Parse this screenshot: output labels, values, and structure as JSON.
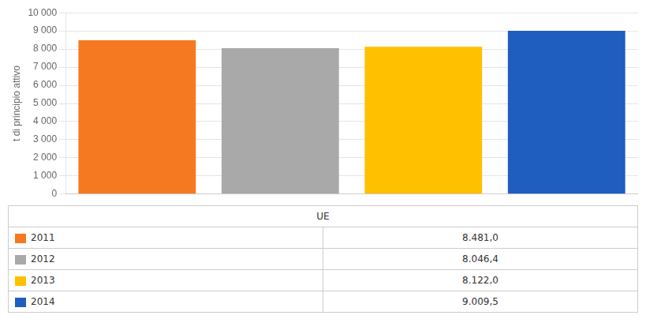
{
  "chart_data": {
    "type": "bar",
    "categories": [
      "UE"
    ],
    "series": [
      {
        "name": "2011",
        "color": "#F47920",
        "values": [
          8481.0
        ],
        "value_labels": [
          "8.481,0"
        ]
      },
      {
        "name": "2012",
        "color": "#A9A9A9",
        "values": [
          8046.4
        ],
        "value_labels": [
          "8.046,4"
        ]
      },
      {
        "name": "2013",
        "color": "#FFC000",
        "values": [
          8122.0
        ],
        "value_labels": [
          "8.122,0"
        ]
      },
      {
        "name": "2014",
        "color": "#1F5EBF",
        "values": [
          9009.5
        ],
        "value_labels": [
          "9.009,5"
        ]
      }
    ],
    "ylabel": "t di principio attivo",
    "ylim": [
      0,
      10000
    ],
    "yticks": [
      0,
      {
        "value": 1000,
        "label": "1 000"
      },
      {
        "value": 2000,
        "label": "2 000"
      },
      {
        "value": 3000,
        "label": "3 000"
      },
      {
        "value": 4000,
        "label": "4 000"
      },
      {
        "value": 5000,
        "label": "5 000"
      },
      {
        "value": 6000,
        "label": "6 000"
      },
      {
        "value": 7000,
        "label": "7 000"
      },
      {
        "value": 8000,
        "label": "8 000"
      },
      {
        "value": 9000,
        "label": "9 000"
      },
      {
        "value": 10000,
        "label": "10 000"
      }
    ],
    "grid": true,
    "legend": "bottom",
    "tick_labels": "y"
  }
}
